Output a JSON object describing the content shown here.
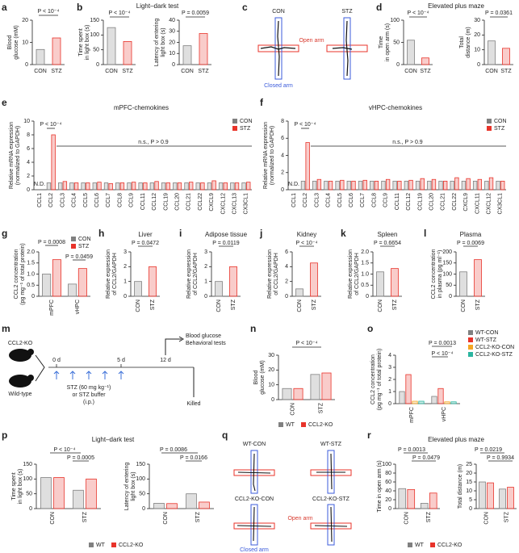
{
  "chart_data": [
    {
      "type": "bar",
      "panel": "a",
      "ylabel": [
        "Blood",
        "glucose (mM)"
      ],
      "categories": [
        "CON",
        "STZ"
      ],
      "values": [
        6.8,
        12
      ],
      "colors": [
        "#808080",
        "#e8332a"
      ],
      "ylim": [
        0,
        20
      ],
      "yticks": [
        0,
        10,
        20
      ],
      "annotations": [
        "P < 10⁻⁴"
      ]
    },
    {
      "type": "bar",
      "panel": "b",
      "title": "Light–dark test",
      "ylabel": [
        "Time spent",
        "in light box (s)"
      ],
      "categories": [
        "CON",
        "STZ"
      ],
      "values": [
        125,
        78
      ],
      "colors": [
        "#808080",
        "#e8332a"
      ],
      "ylim": [
        0,
        150
      ],
      "yticks": [
        0,
        50,
        100,
        150
      ],
      "annotations": [
        "P < 10⁻⁴"
      ]
    },
    {
      "type": "bar",
      "ylabel": [
        "Latency of entering",
        "light box (s)"
      ],
      "categories": [
        "CON",
        "STZ"
      ],
      "values": [
        17,
        28
      ],
      "colors": [
        "#808080",
        "#e8332a"
      ],
      "ylim": [
        0,
        40
      ],
      "yticks": [
        0,
        10,
        20,
        30,
        40
      ],
      "annotations": [
        "P = 0.0059"
      ]
    },
    {
      "type": "bar",
      "panel": "d",
      "title": "Elevated plus maze",
      "ylabel": [
        "Time",
        "in open arm (s)"
      ],
      "categories": [
        "CON",
        "STZ"
      ],
      "values": [
        55,
        15
      ],
      "colors": [
        "#808080",
        "#e8332a"
      ],
      "ylim": [
        0,
        100
      ],
      "yticks": [
        0,
        50,
        100
      ],
      "annotations": [
        "P < 10⁻⁴"
      ]
    },
    {
      "type": "bar",
      "ylabel": [
        "Total",
        "distance (m)"
      ],
      "categories": [
        "CON",
        "STZ"
      ],
      "values": [
        16,
        11
      ],
      "colors": [
        "#808080",
        "#e8332a"
      ],
      "ylim": [
        0,
        30
      ],
      "yticks": [
        0,
        10,
        20,
        30
      ],
      "annotations": [
        "P = 0.0361"
      ]
    },
    {
      "type": "bar",
      "panel": "e",
      "title": "mPFC-chemokines",
      "ylabel": [
        "Relative mRNA expression",
        "(normalized to GAPDH)"
      ],
      "categories": [
        "CCL1",
        "CCL2",
        "CCL3",
        "CCL4",
        "CCL5",
        "CCL6",
        "CCL7",
        "CCL8",
        "CCL9",
        "CCL11",
        "CCL12",
        "CCL19",
        "CCL20",
        "CCL21",
        "CCL22",
        "CXCL9",
        "CXCL12",
        "CXCL13",
        "CX3CL1"
      ],
      "series": [
        {
          "name": "CON",
          "color": "#808080",
          "values": [
            null,
            1,
            1,
            1,
            1,
            1,
            1,
            1,
            1,
            1,
            1,
            1,
            1,
            1,
            1,
            1,
            1,
            1,
            1
          ]
        },
        {
          "name": "STZ",
          "color": "#e8332a",
          "values": [
            null,
            8,
            1.2,
            1,
            1,
            1.1,
            0.9,
            1,
            1.1,
            1,
            1.2,
            1,
            1,
            1.1,
            1,
            1.3,
            1,
            1,
            1.1
          ]
        }
      ],
      "legend": true,
      "ylim": [
        0,
        10
      ],
      "yticks": [
        0,
        2,
        4,
        6,
        8,
        10
      ],
      "annotations": [
        "P < 10⁻⁴",
        "N.D.",
        "n.s., P > 0.9"
      ]
    },
    {
      "type": "bar",
      "panel": "f",
      "title": "vHPC-chemokines",
      "ylabel": [
        "Relative mRNA expression",
        "(normalized to GAPDH)"
      ],
      "categories": [
        "CCL1",
        "CCL2",
        "CCL3",
        "CCL4",
        "CCL5",
        "CCL6",
        "CCL7",
        "CCL8",
        "CCL9",
        "CCL11",
        "CCL12",
        "CCL19",
        "CCL20",
        "CCL21",
        "CCL22",
        "CXCL9",
        "CXCL11",
        "CXCL12",
        "CX3CL1"
      ],
      "series": [
        {
          "name": "CON",
          "color": "#808080",
          "values": [
            null,
            1,
            1,
            1,
            1,
            1,
            1,
            1,
            1,
            1,
            1,
            1,
            1,
            1,
            1,
            1,
            1,
            1,
            1
          ]
        },
        {
          "name": "STZ",
          "color": "#e8332a",
          "values": [
            null,
            5.5,
            1.2,
            1,
            1.1,
            1,
            1.1,
            1,
            1.2,
            1,
            1.1,
            1.3,
            1.2,
            1,
            1.4,
            1.3,
            1.2,
            1.4,
            1
          ]
        }
      ],
      "legend": true,
      "ylim": [
        0,
        8
      ],
      "yticks": [
        0,
        2,
        4,
        6,
        8
      ],
      "annotations": [
        "P < 10⁻⁴",
        "N.D.",
        "n.s., P > 0.9"
      ]
    },
    {
      "type": "bar",
      "panel": "g",
      "ylabel": [
        "CCL2 concentration",
        "(pg mg⁻¹ of total protein)"
      ],
      "categories": [
        "mPFC",
        "vHPC"
      ],
      "series": [
        {
          "name": "CON",
          "color": "#808080",
          "values": [
            1.0,
            0.55
          ]
        },
        {
          "name": "STZ",
          "color": "#e8332a",
          "values": [
            1.65,
            1.25
          ]
        }
      ],
      "legend": true,
      "ylim": [
        0,
        2
      ],
      "yticks": [
        0,
        0.5,
        {
          "value": 1,
          "label": "1.0"
        },
        1.5,
        {
          "value": 2,
          "label": "2.0"
        }
      ],
      "annotations": [
        "P = 0.0008",
        "P = 0.0459"
      ]
    },
    {
      "type": "bar",
      "panel": "h",
      "title": "Liver",
      "ylabel": [
        "Relative expression",
        "of CCL2/GAPDH"
      ],
      "categories": [
        "CON",
        "STZ"
      ],
      "values": [
        1.0,
        2.0
      ],
      "colors": [
        "#808080",
        "#e8332a"
      ],
      "ylim": [
        0,
        3
      ],
      "yticks": [
        0,
        1,
        2,
        3
      ],
      "annotations": [
        "P = 0.0472"
      ]
    },
    {
      "type": "bar",
      "panel": "i",
      "title": "Adipose tissue",
      "ylabel": [
        "Relative expression",
        "of CCL2/GAPDH"
      ],
      "categories": [
        "CON",
        "STZ"
      ],
      "values": [
        1.0,
        2.0
      ],
      "colors": [
        "#808080",
        "#e8332a"
      ],
      "ylim": [
        0,
        3
      ],
      "yticks": [
        0,
        1,
        2,
        3
      ],
      "annotations": [
        "P = 0.0119"
      ]
    },
    {
      "type": "bar",
      "panel": "j",
      "title": "Kidney",
      "ylabel": [
        "Relative expression",
        "of CCL2/GAPDH"
      ],
      "categories": [
        "CON",
        "STZ"
      ],
      "values": [
        1.0,
        4.5
      ],
      "colors": [
        "#808080",
        "#e8332a"
      ],
      "ylim": [
        0,
        6
      ],
      "yticks": [
        0,
        2,
        4,
        6
      ],
      "annotations": [
        "P < 10⁻⁴"
      ]
    },
    {
      "type": "bar",
      "panel": "k",
      "title": "Spleen",
      "ylabel": [
        "Relative expression",
        "of CCL2/GAPDH"
      ],
      "categories": [
        "CON",
        "STZ"
      ],
      "values": [
        1.1,
        1.25
      ],
      "colors": [
        "#808080",
        "#e8332a"
      ],
      "ylim": [
        0,
        2
      ],
      "yticks": [
        0,
        0.5,
        {
          "value": 1,
          "label": "1.0"
        },
        1.5,
        {
          "value": 2,
          "label": "2.0"
        }
      ],
      "annotations": [
        "P = 0.6654"
      ]
    },
    {
      "type": "bar",
      "panel": "l",
      "title": "Plasma",
      "ylabel": [
        "CCL2 concentration",
        "in plasma (pg ml⁻¹)"
      ],
      "categories": [
        "CON",
        "STZ"
      ],
      "values": [
        110,
        165
      ],
      "colors": [
        "#808080",
        "#e8332a"
      ],
      "ylim": [
        0,
        200
      ],
      "yticks": [
        0,
        50,
        100,
        150,
        200
      ],
      "annotations": [
        "P = 0.0069"
      ]
    },
    {
      "type": "bar",
      "panel": "n",
      "ylabel": [
        "Blood",
        "glucose (mM)"
      ],
      "categories": [
        "CON",
        "STZ"
      ],
      "series": [
        {
          "name": "WT",
          "color": "#808080",
          "values": [
            7.5,
            17
          ]
        },
        {
          "name": "CCL2-KO",
          "color": "#e8332a",
          "values": [
            7.5,
            18
          ]
        }
      ],
      "legend": true,
      "ylim": [
        0,
        30
      ],
      "yticks": [
        0,
        10,
        20,
        30
      ],
      "annotations": [
        "P < 10⁻⁴"
      ]
    },
    {
      "type": "bar",
      "panel": "o",
      "ylabel": [
        "CCL2 concentration",
        "(pg mg⁻¹ of total protein)"
      ],
      "categories": [
        "mPFC",
        "vHPC"
      ],
      "series": [
        {
          "name": "WT-CON",
          "color": "#808080",
          "values": [
            1.0,
            0.6
          ]
        },
        {
          "name": "WT-STZ",
          "color": "#e8332a",
          "values": [
            2.4,
            1.25
          ]
        },
        {
          "name": "CCL2-KO-CON",
          "color": "#f5a623",
          "values": [
            0.2,
            0.15
          ]
        },
        {
          "name": "CCL2-KO-STZ",
          "color": "#2bb5a0",
          "values": [
            0.2,
            0.15
          ]
        }
      ],
      "legend": true,
      "ylim": [
        0,
        4
      ],
      "yticks": [
        0,
        1,
        2,
        3,
        4
      ],
      "annotations": [
        "P = 0.0013",
        "P < 10⁻⁴"
      ]
    },
    {
      "type": "bar",
      "panel": "p",
      "title": "Light–dark test",
      "ylabel": [
        "Time spent",
        "in light box (s)"
      ],
      "categories": [
        "CON",
        "STZ"
      ],
      "series": [
        {
          "name": "WT",
          "color": "#808080",
          "values": [
            105,
            62
          ]
        },
        {
          "name": "CCL2-KO",
          "color": "#e8332a",
          "values": [
            105,
            100
          ]
        }
      ],
      "ylim": [
        0,
        150
      ],
      "yticks": [
        0,
        50,
        100,
        150
      ],
      "annotations": [
        "P < 10⁻⁴",
        "P = 0.0005"
      ]
    },
    {
      "type": "bar",
      "ylabel": [
        "Latency of entering",
        "light box (s)"
      ],
      "categories": [
        "CON",
        "STZ"
      ],
      "series": [
        {
          "name": "WT",
          "color": "#808080",
          "values": [
            18,
            50
          ]
        },
        {
          "name": "CCL2-KO",
          "color": "#e8332a",
          "values": [
            17,
            22
          ]
        }
      ],
      "legend": true,
      "ylim": [
        0,
        150
      ],
      "yticks": [
        0,
        50,
        100,
        150
      ],
      "annotations": [
        "P = 0.0086",
        "P = 0.0166"
      ]
    },
    {
      "type": "bar",
      "panel": "r",
      "title": "Elevated plus maze",
      "ylabel": [
        "Time in open arm (s)"
      ],
      "categories": [
        "CON",
        "STZ"
      ],
      "series": [
        {
          "name": "WT",
          "color": "#808080",
          "values": [
            45,
            12
          ]
        },
        {
          "name": "CCL2-KO",
          "color": "#e8332a",
          "values": [
            43,
            35
          ]
        }
      ],
      "legend": true,
      "ylim": [
        0,
        100
      ],
      "yticks": [
        0,
        20,
        40,
        60,
        80,
        100
      ],
      "annotations": [
        "P = 0.0013",
        "P = 0.0479"
      ]
    },
    {
      "type": "bar",
      "ylabel": [
        "Total distance (m)"
      ],
      "categories": [
        "CON",
        "STZ"
      ],
      "series": [
        {
          "name": "WT",
          "color": "#808080",
          "values": [
            15,
            11
          ]
        },
        {
          "name": "CCL2-KO",
          "color": "#e8332a",
          "values": [
            14.5,
            12
          ]
        }
      ],
      "ylim": [
        0,
        25
      ],
      "yticks": [
        0,
        5,
        10,
        15,
        20,
        25
      ],
      "annotations": [
        "P = 0.0219",
        "P = 0.9934"
      ]
    }
  ],
  "diagrams": [
    {
      "panel": "c",
      "texts": [
        "CON",
        "STZ",
        "Open arm",
        "Closed arm"
      ]
    },
    {
      "panel": "m",
      "texts": [
        "CCL2-KO",
        "Wild-type",
        "0 d",
        "5 d",
        "12 d",
        "Blood glucose",
        "Behavioral tests",
        "Killed",
        "STZ (60 mg kg⁻¹)",
        "or STZ buffer",
        "(i.p.)"
      ]
    },
    {
      "panel": "q",
      "texts": [
        "WT-CON",
        "WT-STZ",
        "CCL2-KO-CON",
        "CCL2-KO-STZ",
        "Open arm",
        "Closed arm"
      ]
    }
  ]
}
